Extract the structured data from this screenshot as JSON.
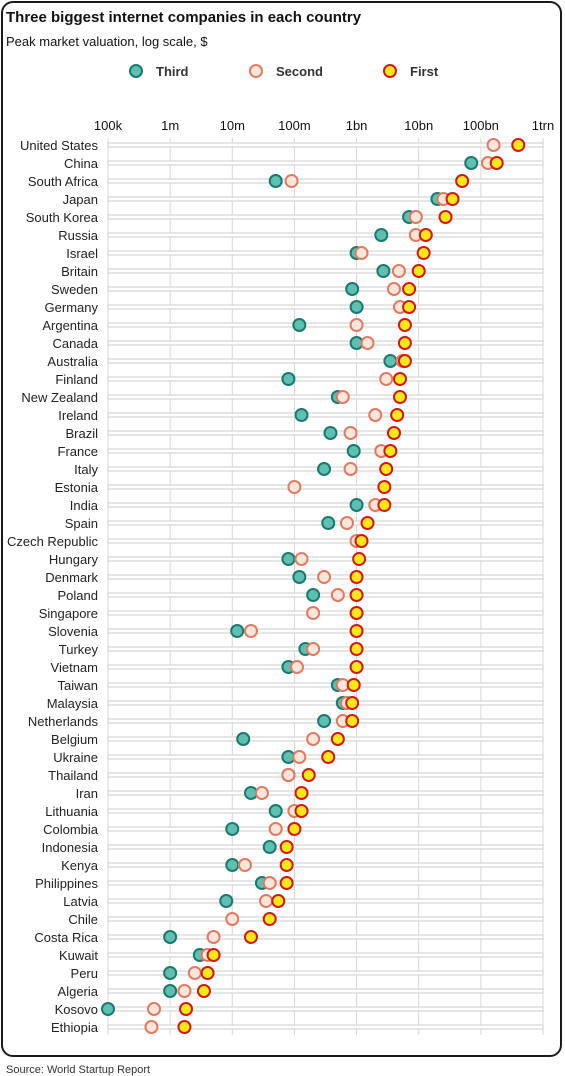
{
  "chart_data": {
    "type": "scatter",
    "title": "Three biggest internet companies in each country",
    "subtitle": "Peak market valuation, log scale, $",
    "source": "Source: World Startup Report",
    "x_scale": "log",
    "xlim": [
      100000,
      1000000000000
    ],
    "x_ticks": [
      {
        "value": 100000,
        "label": "100k"
      },
      {
        "value": 1000000,
        "label": "1m"
      },
      {
        "value": 10000000,
        "label": "10m"
      },
      {
        "value": 100000000,
        "label": "100m"
      },
      {
        "value": 1000000000,
        "label": "1bn"
      },
      {
        "value": 10000000000,
        "label": "10bn"
      },
      {
        "value": 100000000000,
        "label": "100bn"
      },
      {
        "value": 1000000000000,
        "label": "1trn"
      }
    ],
    "legend_position": "top",
    "grid": false,
    "colors": {
      "third_fill": "#5fbfb0",
      "third_stroke": "#1a7a70",
      "second_fill": "#fbe6dc",
      "second_stroke": "#e07a62",
      "first_fill": "#ffe81a",
      "first_stroke": "#d01a10",
      "row_line": "#cccccc"
    },
    "series": [
      {
        "name": "Third",
        "key": "third"
      },
      {
        "name": "Second",
        "key": "second"
      },
      {
        "name": "First",
        "key": "first"
      }
    ],
    "categories": [
      "United States",
      "China",
      "South Africa",
      "Japan",
      "South Korea",
      "Russia",
      "Israel",
      "Britain",
      "Sweden",
      "Germany",
      "Argentina",
      "Canada",
      "Australia",
      "Finland",
      "New Zealand",
      "Ireland",
      "Brazil",
      "France",
      "Italy",
      "Estonia",
      "India",
      "Spain",
      "Czech Republic",
      "Hungary",
      "Denmark",
      "Poland",
      "Singapore",
      "Slovenia",
      "Turkey",
      "Vietnam",
      "Taiwan",
      "Malaysia",
      "Netherlands",
      "Belgium",
      "Ukraine",
      "Thailand",
      "Iran",
      "Lithuania",
      "Colombia",
      "Indonesia",
      "Kenya",
      "Philippines",
      "Latvia",
      "Chile",
      "Costa Rica",
      "Kuwait",
      "Peru",
      "Algeria",
      "Kosovo",
      "Ethiopia"
    ],
    "values": {
      "third": [
        null,
        70000000000,
        50000000,
        20000000000,
        7000000000,
        2500000000,
        1000000000,
        2700000000,
        850000000,
        1000000000,
        120000000,
        1000000000,
        3500000000,
        80000000,
        500000000,
        130000000,
        380000000,
        900000000,
        300000000,
        null,
        1000000000,
        350000000,
        null,
        80000000,
        120000000,
        200000000,
        null,
        12000000,
        150000000,
        80000000,
        500000000,
        600000000,
        300000000,
        15000000,
        80000000,
        80000000,
        20000000,
        50000000,
        10000000,
        40000000,
        10000000,
        30000000,
        8000000,
        null,
        1000000,
        3000000,
        1000000,
        1000000,
        100000,
        null
      ],
      "second": [
        160000000000,
        130000000000,
        90000000,
        25000000000,
        9000000000,
        9000000000,
        1200000000,
        4800000000,
        4000000000,
        5000000000,
        1000000000,
        1500000000,
        5500000000,
        3000000000,
        600000000,
        2000000000,
        800000000,
        2500000000,
        800000000,
        100000000,
        2000000000,
        700000000,
        1000000000,
        130000000,
        300000000,
        500000000,
        200000000,
        20000000,
        200000000,
        110000000,
        600000000,
        700000000,
        600000000,
        200000000,
        120000000,
        80000000,
        30000000,
        100000000,
        50000000,
        null,
        16000000,
        40000000,
        35000000,
        10000000,
        5000000,
        4000000,
        2500000,
        1700000,
        550000,
        500000
      ],
      "first": [
        400000000000,
        180000000000,
        50000000000,
        35000000000,
        27000000000,
        13000000000,
        12000000000,
        10000000000,
        7000000000,
        7000000000,
        6000000000,
        6000000000,
        6000000000,
        5000000000,
        5000000000,
        4500000000,
        4000000000,
        3500000000,
        3000000000,
        2800000000,
        2800000000,
        1500000000,
        1200000000,
        1100000000,
        1000000000,
        1000000000,
        1000000000,
        1000000000,
        1000000000,
        1000000000,
        900000000,
        850000000,
        850000000,
        500000000,
        350000000,
        170000000,
        130000000,
        130000000,
        100000000,
        75000000,
        75000000,
        75000000,
        55000000,
        40000000,
        20000000,
        5000000,
        4000000,
        3500000,
        1800000,
        1700000
      ]
    }
  }
}
